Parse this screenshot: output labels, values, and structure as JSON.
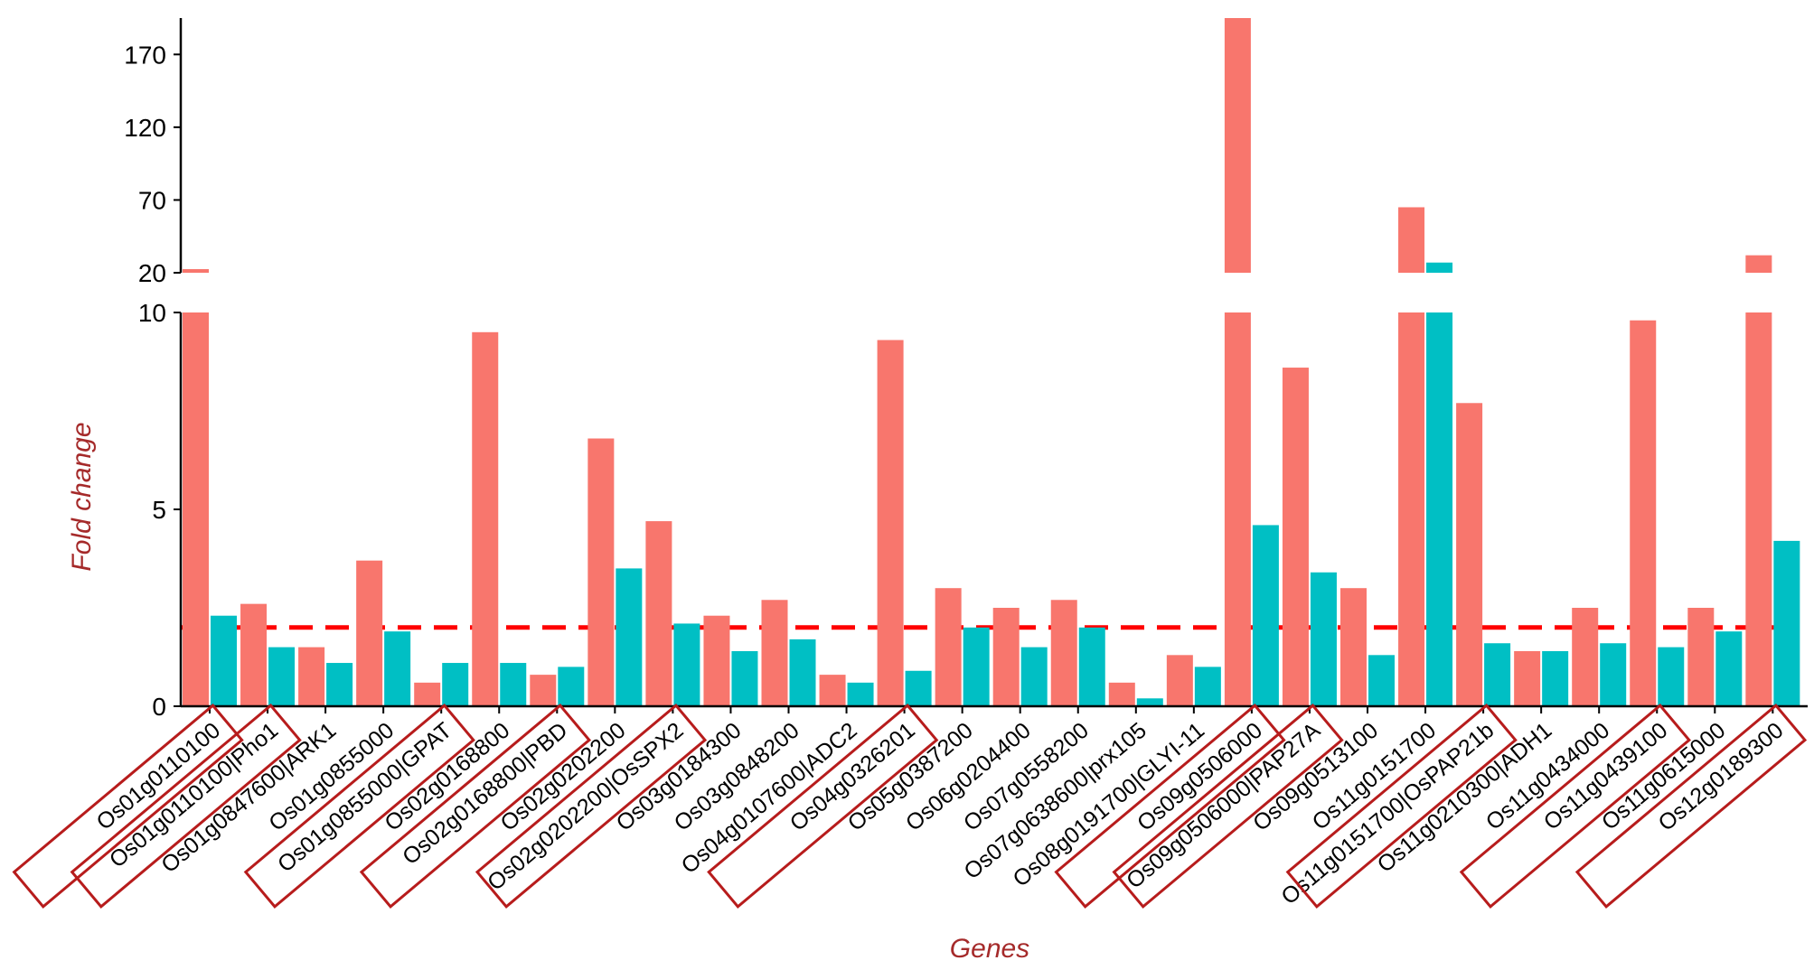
{
  "chart_data": {
    "type": "bar",
    "title": "",
    "xlabel": "Genes",
    "ylabel": "Fold change",
    "axis_break": {
      "lower_range": [
        0,
        10
      ],
      "upper_range": [
        20,
        195
      ]
    },
    "y_ticks_lower": [
      "0",
      "5",
      "10"
    ],
    "y_ticks_upper": [
      "20",
      "70",
      "120",
      "170"
    ],
    "threshold": 2,
    "colors": {
      "series1": "#f8766d",
      "series2": "#00bfc4",
      "threshold": "#ff0000",
      "highlight_box": "#b71c1c",
      "axis_title": "#a52a2a"
    },
    "categories": [
      "Os01g0110100",
      "Os01g0110100|Pho1",
      "Os01g0847600|ARK1",
      "Os01g0855000",
      "Os01g0855000|GPAT",
      "Os02g0168800",
      "Os02g0168800|PBD",
      "Os02g0202200",
      "Os02g0202200|OsSPX2",
      "Os03g0184300",
      "Os03g0848200",
      "Os04g0107600|ADC2",
      "Os04g0326201",
      "Os05g0387200",
      "Os06g0204400",
      "Os07g0558200",
      "Os07g0638600|prx105",
      "Os08g0191700|GLYI-11",
      "Os09g0506000",
      "Os09g0506000|PAP27A",
      "Os09g0513100",
      "Os11g0151700",
      "Os11g0151700|OsPAP21b",
      "Os11g0210300|ADH1",
      "Os11g0434000",
      "Os11g0439100",
      "Os11g0615000",
      "Os12g0189300"
    ],
    "highlighted": [
      "Os01g0110100",
      "Os01g0110100|Pho1",
      "Os01g0855000|GPAT",
      "Os02g0168800|PBD",
      "Os02g0202200|OsSPX2",
      "Os04g0326201",
      "Os09g0506000",
      "Os09g0506000|PAP27A",
      "Os11g0151700|OsPAP21b",
      "Os11g0439100",
      "Os12g0189300"
    ],
    "series": [
      {
        "values": [
          22,
          2.6,
          1.5,
          3.7,
          0.6,
          9.5,
          0.8,
          6.8,
          4.7,
          2.3,
          2.7,
          0.8,
          9.3,
          3.0,
          2.5,
          2.7,
          0.6,
          1.3,
          195,
          8.6,
          3.0,
          65,
          7.7,
          1.4,
          2.5,
          9.8,
          2.5,
          32
        ]
      },
      {
        "values": [
          2.3,
          1.5,
          1.1,
          1.9,
          1.1,
          1.1,
          1.0,
          3.5,
          2.1,
          1.4,
          1.7,
          0.6,
          0.9,
          2.0,
          1.5,
          2.0,
          0.2,
          1.0,
          4.6,
          3.4,
          1.3,
          27,
          1.6,
          1.4,
          1.6,
          1.5,
          1.9,
          4.2
        ]
      }
    ]
  }
}
